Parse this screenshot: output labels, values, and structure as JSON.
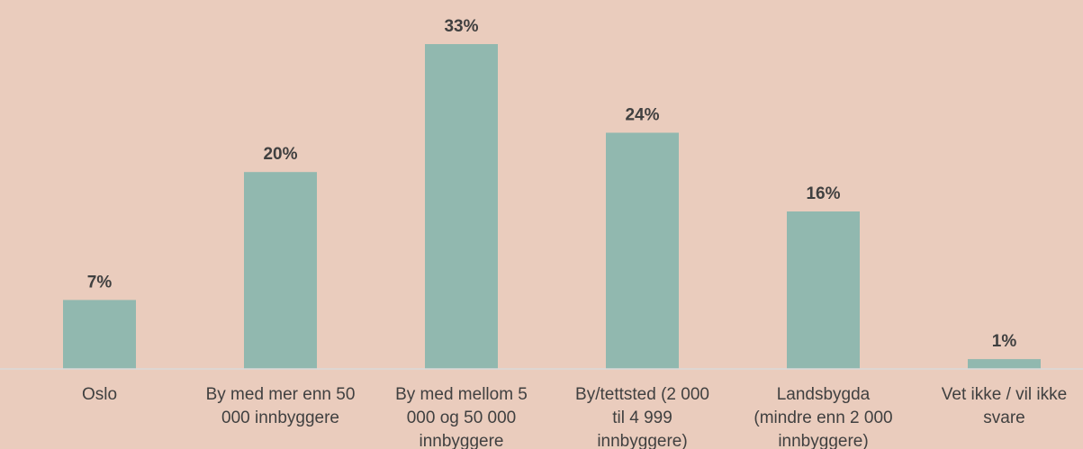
{
  "chart_data": {
    "type": "bar",
    "categories": [
      [
        "Oslo"
      ],
      [
        "By med mer enn 50",
        "000 innbyggere"
      ],
      [
        "By med mellom 5",
        "000 og 50 000",
        "innbyggere"
      ],
      [
        "By/tettsted (2 000",
        "til 4 999",
        "innbyggere)"
      ],
      [
        "Landsbygda",
        "(mindre enn 2 000",
        "innbyggere)"
      ],
      [
        "Vet ikke / vil ikke",
        "svare"
      ]
    ],
    "values": [
      7,
      20,
      33,
      24,
      16,
      1
    ],
    "data_labels": [
      "7%",
      "20%",
      "33%",
      "24%",
      "16%",
      "1%"
    ],
    "unit": "%",
    "ylim": [
      0,
      33
    ],
    "grid": false,
    "legend": "none",
    "colors": {
      "background": "#EACCBD",
      "bar": "#91B8AF",
      "baseline": "#D9D9D9",
      "text": "#404040"
    }
  }
}
